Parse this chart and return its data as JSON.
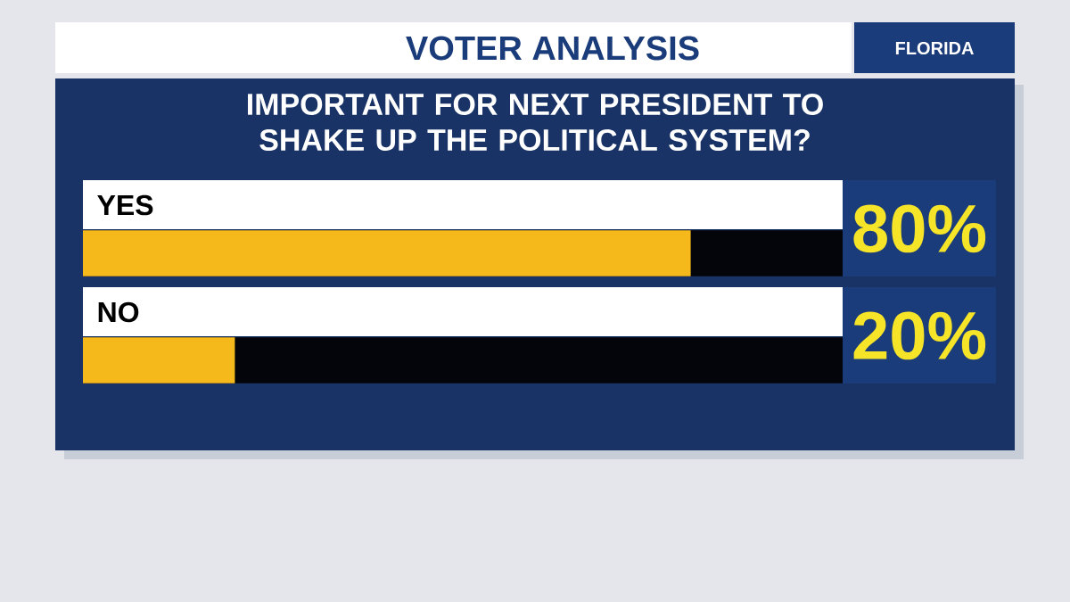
{
  "chart_data": {
    "type": "bar",
    "orientation": "horizontal",
    "title": "IMPORTANT FOR NEXT PRESIDENT TO SHAKE UP THE POLITICAL SYSTEM?",
    "annotations": [
      "VOTER ANALYSIS",
      "FLORIDA"
    ],
    "categories": [
      "YES",
      "NO"
    ],
    "values": [
      80,
      20
    ],
    "value_labels": [
      "80%",
      "20%"
    ],
    "color": "#f6b91c",
    "xlim": [
      0,
      100
    ]
  }
}
